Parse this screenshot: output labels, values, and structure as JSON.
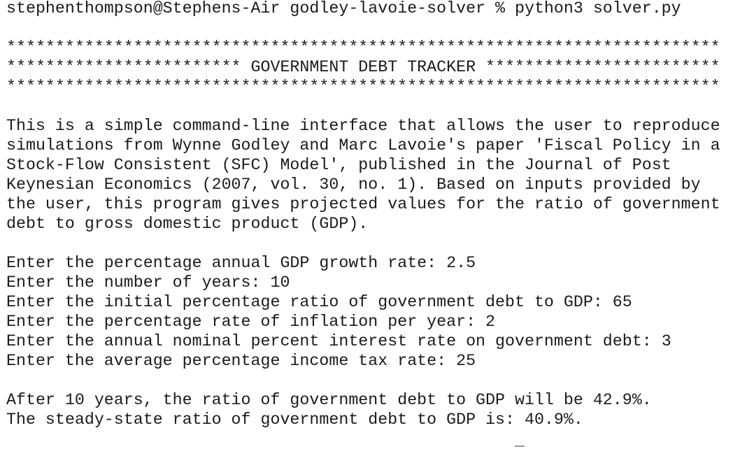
{
  "command_line": "stephenthompson@Stephens-Air godley-lavoie-solver % python3 solver.py",
  "banner": [
    "*************************************************************************",
    "************************ GOVERNMENT DEBT TRACKER ************************",
    "*************************************************************************"
  ],
  "description": [
    "This is a simple command-line interface that allows the user to reproduce",
    "simulations from Wynne Godley and Marc Lavoie's paper 'Fiscal Policy in a",
    "Stock-Flow Consistent (SFC) Model', published in the Journal of Post",
    "Keynesian Economics (2007, vol. 30, no. 1). Based on inputs provided by",
    "the user, this program gives projected values for the ratio of government",
    "debt to gross domestic product (GDP)."
  ],
  "inputs": [
    {
      "prompt": "Enter the percentage annual GDP growth rate:",
      "value": "2.5"
    },
    {
      "prompt": "Enter the number of years:",
      "value": "10"
    },
    {
      "prompt": "Enter the initial percentage ratio of government debt to GDP:",
      "value": "65"
    },
    {
      "prompt": "Enter the percentage rate of inflation per year:",
      "value": "2"
    },
    {
      "prompt": "Enter the annual nominal percent interest rate on government debt:",
      "value": "3"
    },
    {
      "prompt": "Enter the average percentage income tax rate:",
      "value": "25"
    }
  ],
  "results": [
    "After 10 years, the ratio of government debt to GDP will be 42.9%.",
    "The steady-state ratio of government debt to GDP is: 40.9%."
  ]
}
